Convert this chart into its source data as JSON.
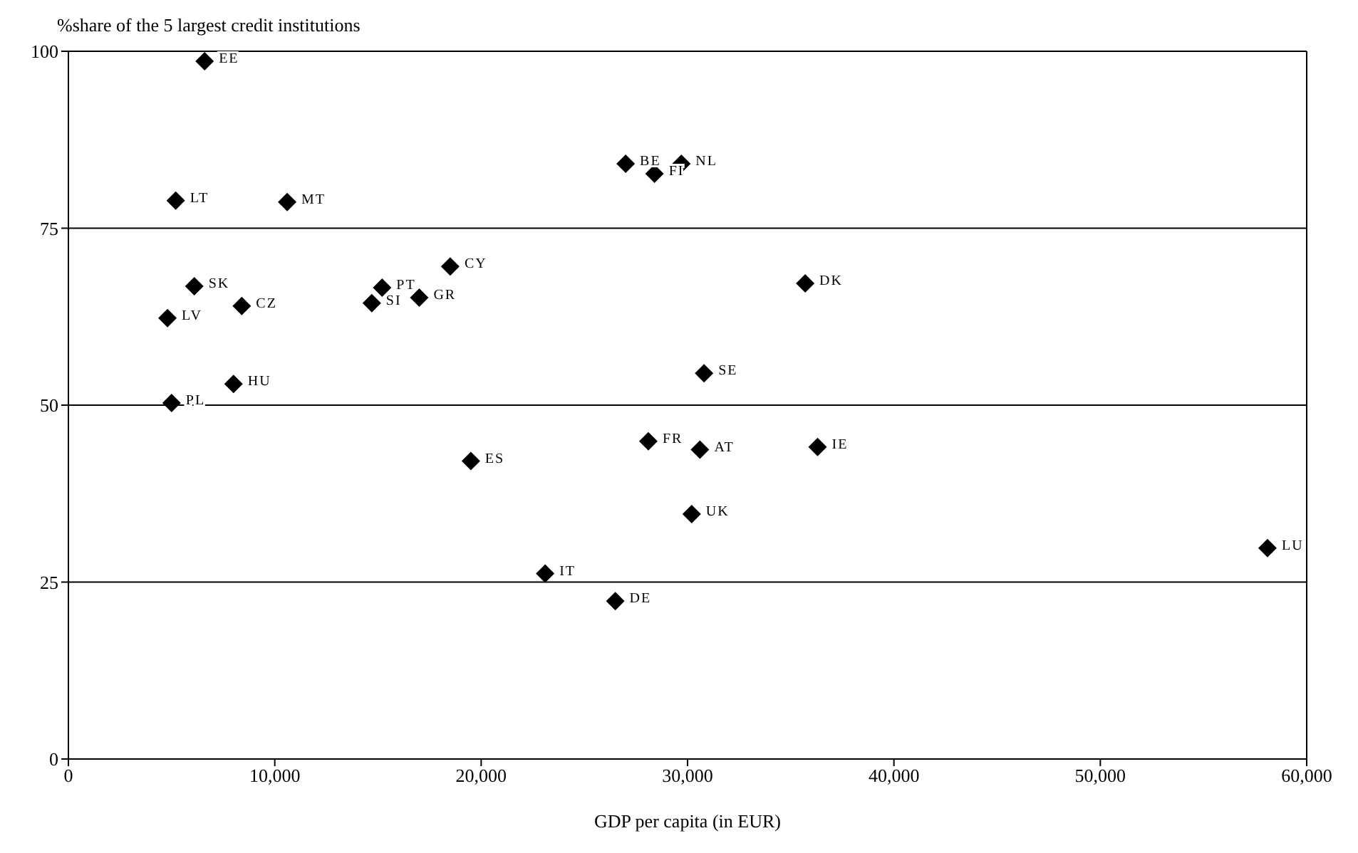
{
  "chart_data": {
    "type": "scatter",
    "ylabel": "%share of the 5 largest credit institutions",
    "xlabel": "GDP per capita (in EUR)",
    "x": [
      6600,
      5200,
      10600,
      27000,
      29700,
      28400,
      35700,
      18500,
      15200,
      14700,
      17000,
      6100,
      8400,
      4800,
      30800,
      8000,
      5000,
      19500,
      28100,
      30600,
      36300,
      30200,
      58100,
      23100,
      26500
    ],
    "series": [
      {
        "color": "#000000",
        "values": [
          98.6,
          78.9,
          78.7,
          84.1,
          84.1,
          82.7,
          67.2,
          69.6,
          66.6,
          64.4,
          65.2,
          66.8,
          64.0,
          62.3,
          54.5,
          53.0,
          50.3,
          42.1,
          44.9,
          43.7,
          44.1,
          34.6,
          29.8,
          26.2,
          22.3
        ]
      }
    ],
    "xlim": [
      0,
      60000
    ],
    "xticks": [
      {
        "value": 0,
        "label": "0"
      },
      {
        "value": 10000,
        "label": "10,000"
      },
      {
        "value": 20000,
        "label": "20,000"
      },
      {
        "value": 30000,
        "label": "30,000"
      },
      {
        "value": 40000,
        "label": "40,000"
      },
      {
        "value": 50000,
        "label": "50,000"
      },
      {
        "value": 60000,
        "label": "60,000"
      }
    ],
    "ylim": [
      0,
      100
    ],
    "yticks": [
      0,
      25,
      50,
      75,
      100
    ],
    "grid": "y",
    "marker": "diamond",
    "legend": false,
    "annotations": [
      {
        "text": "EE",
        "x": 6600,
        "y": 98.6
      },
      {
        "text": "LT",
        "x": 5200,
        "y": 78.9
      },
      {
        "text": "MT",
        "x": 10600,
        "y": 78.7
      },
      {
        "text": "BE",
        "x": 27000,
        "y": 84.1
      },
      {
        "text": "NL",
        "x": 29700,
        "y": 84.1
      },
      {
        "text": "FI",
        "x": 28400,
        "y": 82.7
      },
      {
        "text": "DK",
        "x": 35700,
        "y": 67.2
      },
      {
        "text": "CY",
        "x": 18500,
        "y": 69.6
      },
      {
        "text": "PT",
        "x": 15200,
        "y": 66.6
      },
      {
        "text": "SI",
        "x": 14700,
        "y": 64.4
      },
      {
        "text": "GR",
        "x": 17000,
        "y": 65.2
      },
      {
        "text": "SK",
        "x": 6100,
        "y": 66.8
      },
      {
        "text": "CZ",
        "x": 8400,
        "y": 64.0
      },
      {
        "text": "LV",
        "x": 4800,
        "y": 62.3
      },
      {
        "text": "SE",
        "x": 30800,
        "y": 54.5
      },
      {
        "text": "HU",
        "x": 8000,
        "y": 53.0
      },
      {
        "text": "PL",
        "x": 5000,
        "y": 50.3
      },
      {
        "text": "ES",
        "x": 19500,
        "y": 42.1
      },
      {
        "text": "FR",
        "x": 28100,
        "y": 44.9
      },
      {
        "text": "AT",
        "x": 30600,
        "y": 43.7
      },
      {
        "text": "IE",
        "x": 36300,
        "y": 44.1
      },
      {
        "text": "UK",
        "x": 30200,
        "y": 34.6
      },
      {
        "text": "LU",
        "x": 58100,
        "y": 29.8
      },
      {
        "text": "IT",
        "x": 23100,
        "y": 26.2
      },
      {
        "text": "DE",
        "x": 26500,
        "y": 22.3
      }
    ]
  }
}
